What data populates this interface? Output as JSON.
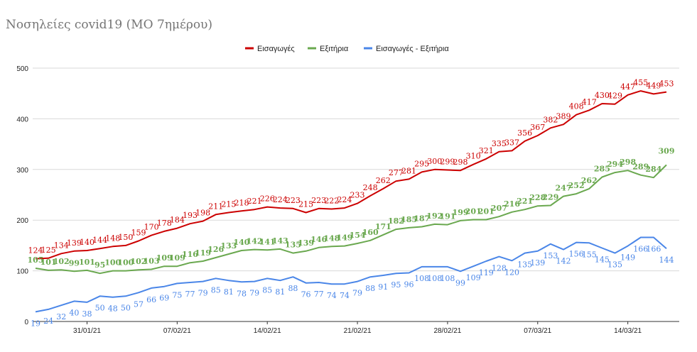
{
  "chart_data": {
    "type": "line",
    "title": "Νοσηλείες covid19 (ΜΟ 7ημέρου)",
    "ylim": [
      0,
      500
    ],
    "yticks": [
      0,
      100,
      200,
      300,
      400,
      500
    ],
    "xtick_labels": [
      "31/01/21",
      "07/02/21",
      "14/02/21",
      "21/02/21",
      "28/02/21",
      "07/03/21",
      "14/03/21"
    ],
    "xtick_index": [
      4,
      11,
      18,
      25,
      32,
      39,
      46
    ],
    "legend_position": "top-center",
    "grid": true,
    "series": [
      {
        "name": "Εισαγωγές",
        "color": "#cc0000",
        "values": [
          124,
          125,
          134,
          139,
          140,
          144,
          148,
          150,
          159,
          170,
          178,
          184,
          193,
          198,
          211,
          215,
          218,
          221,
          226,
          224,
          223,
          215,
          223,
          222,
          224,
          233,
          248,
          262,
          277,
          281,
          295,
          300,
          299,
          298,
          310,
          321,
          335,
          337,
          356,
          367,
          382,
          389,
          408,
          417,
          430,
          429,
          447,
          455,
          449,
          453
        ]
      },
      {
        "name": "Εξιτήρια",
        "color": "#6aa84f",
        "values": [
          105,
          101,
          102,
          99,
          101,
          95,
          100,
          100,
          102,
          103,
          109,
          109,
          116,
          119,
          126,
          133,
          140,
          142,
          141,
          143,
          135,
          139,
          146,
          148,
          149,
          154,
          160,
          171,
          182,
          185,
          187,
          192,
          191,
          199,
          201,
          201,
          207,
          216,
          221,
          228,
          229,
          247,
          252,
          262,
          285,
          294,
          298,
          289,
          284,
          309
        ]
      },
      {
        "name": "Εισαγωγές - Εξιτήρια",
        "color": "#4a86e8",
        "values": [
          19,
          24,
          32,
          40,
          38,
          50,
          48,
          50,
          57,
          66,
          69,
          75,
          77,
          79,
          85,
          81,
          78,
          79,
          85,
          81,
          88,
          76,
          77,
          74,
          74,
          79,
          88,
          91,
          95,
          96,
          108,
          108,
          108,
          99,
          109,
          119,
          128,
          120,
          135,
          139,
          153,
          142,
          156,
          155,
          145,
          135,
          149,
          166,
          166,
          144
        ]
      }
    ]
  }
}
